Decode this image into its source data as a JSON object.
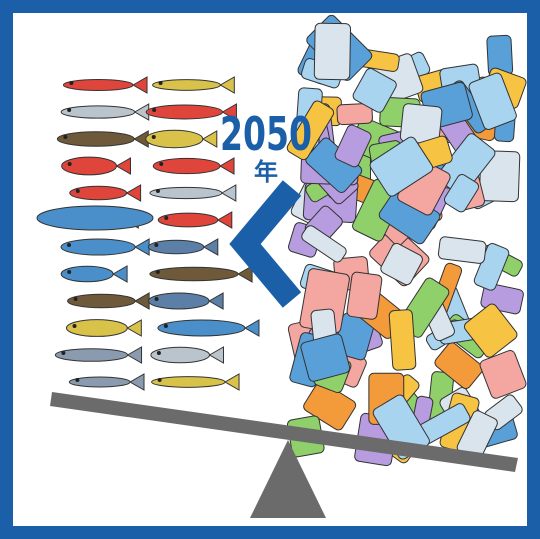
{
  "headline": {
    "year": "2050",
    "unit": "年"
  }
}
